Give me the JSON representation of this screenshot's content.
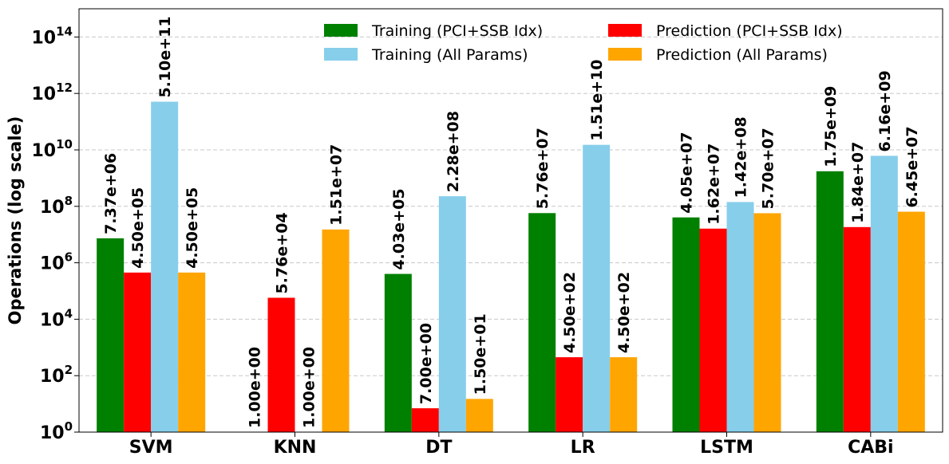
{
  "chart_data": {
    "type": "bar",
    "title": "",
    "xlabel": "",
    "ylabel": "Operations (log scale)",
    "yscale": "log",
    "ylim": [
      1,
      1000000000000000.0
    ],
    "ytick_labels": [
      {
        "base": "10",
        "exp": "0",
        "value": 1
      },
      {
        "base": "10",
        "exp": "2",
        "value": 100
      },
      {
        "base": "10",
        "exp": "4",
        "value": 10000
      },
      {
        "base": "10",
        "exp": "6",
        "value": 1000000
      },
      {
        "base": "10",
        "exp": "8",
        "value": 100000000
      },
      {
        "base": "10",
        "exp": "10",
        "value": 10000000000
      },
      {
        "base": "10",
        "exp": "12",
        "value": 1000000000000
      },
      {
        "base": "10",
        "exp": "14",
        "value": 100000000000000
      }
    ],
    "grid": true,
    "legend_position": "top-right",
    "categories": [
      "SVM",
      "KNN",
      "DT",
      "LR",
      "LSTM",
      "CABi"
    ],
    "series": [
      {
        "name": "Training (PCI+SSB Idx)",
        "color": "#008000",
        "values": [
          7370000,
          1,
          403000,
          57600000,
          40500000,
          1750000000
        ],
        "labels": [
          "7.37e+06",
          "1.00e+00",
          "4.03e+05",
          "5.76e+07",
          "4.05e+07",
          "1.75e+09"
        ]
      },
      {
        "name": "Prediction (PCI+SSB Idx)",
        "color": "#ff0000",
        "values": [
          450000,
          57600,
          7,
          450,
          16200000,
          18400000
        ],
        "labels": [
          "4.50e+05",
          "5.76e+04",
          "7.00e+00",
          "4.50e+02",
          "1.62e+07",
          "1.84e+07"
        ]
      },
      {
        "name": "Training (All Params)",
        "color": "#87ceeb",
        "values": [
          510000000000,
          1,
          228000000,
          15100000000,
          142000000,
          6160000000
        ],
        "labels": [
          "5.10e+11",
          "1.00e+00",
          "2.28e+08",
          "1.51e+10",
          "1.42e+08",
          "6.16e+09"
        ]
      },
      {
        "name": "Prediction (All Params)",
        "color": "#ffa500",
        "values": [
          450000,
          15100000,
          15,
          450,
          57000000,
          64500000
        ],
        "labels": [
          "4.50e+05",
          "1.51e+07",
          "1.50e+01",
          "4.50e+02",
          "5.70e+07",
          "6.45e+07"
        ]
      }
    ]
  }
}
